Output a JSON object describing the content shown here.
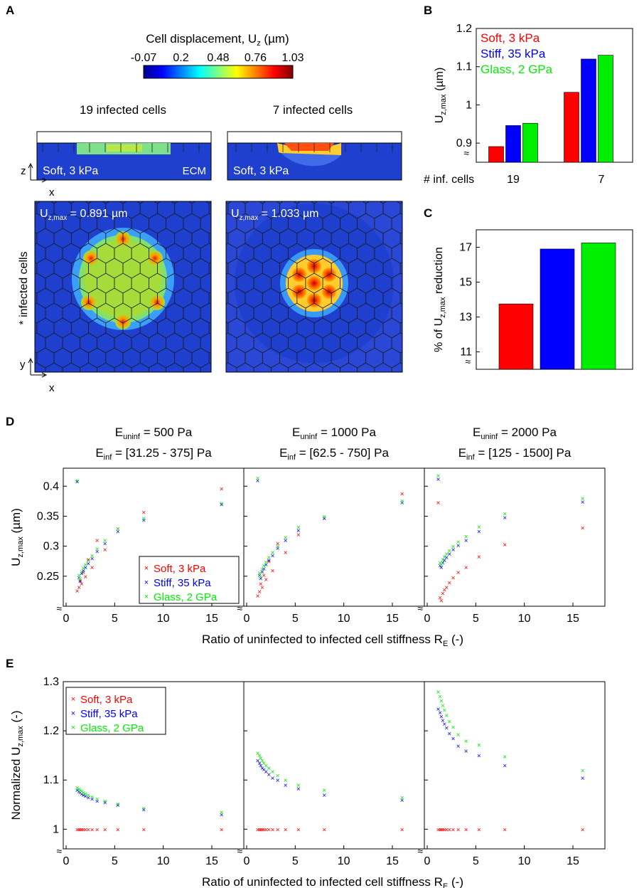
{
  "colors": {
    "soft": "#ff0000",
    "stiff": "#0000ff",
    "glass": "#00ee00",
    "substrate": "#1f3fcf",
    "halo": "#3359e6",
    "cell_line": "#222222"
  },
  "panel_labels": {
    "a": "A",
    "b": "B",
    "c": "C",
    "d": "D",
    "e": "E"
  },
  "panel_a": {
    "colorbar": {
      "title": "Cell displacement, U",
      "title_sub": "z",
      "title_unit": " (µm)",
      "ticks": [
        "-0.07",
        "0.2",
        "0.48",
        "0.76",
        "1.03"
      ]
    },
    "left": {
      "title": "19 infected cells",
      "side_label": "Soft, 3 kPa",
      "ecm_label": "ECM",
      "umax_prefix": "U",
      "umax_sub": "z,max",
      "umax_value": " = 0.891 µm"
    },
    "right": {
      "title": "7 infected cells",
      "side_label": "Soft, 3 kPa",
      "umax_prefix": "U",
      "umax_sub": "z,max",
      "umax_value": " = 1.033 µm"
    },
    "axis_z": "z",
    "axis_x": "x",
    "axis_y": "y",
    "infected_label": "* infected cells"
  },
  "panel_d_titles": [
    {
      "line1_a": "E",
      "line1_sub": "uninf",
      "line1_b": " = 500 Pa",
      "line2_a": "E",
      "line2_sub": "inf",
      "line2_b": " = [31.25 - 375] Pa"
    },
    {
      "line1_a": "E",
      "line1_sub": "uninf",
      "line1_b": " = 1000 Pa",
      "line2_a": "E",
      "line2_sub": "inf",
      "line2_b": " = [62.5 - 750] Pa"
    },
    {
      "line1_a": "E",
      "line1_sub": "uninf",
      "line1_b": " = 2000 Pa",
      "line2_a": "E",
      "line2_sub": "inf",
      "line2_b": " = [125 - 1500] Pa"
    }
  ],
  "legend_labels": [
    "Soft, 3 kPa",
    "Stiff, 35 kPa",
    "Glass, 2 GPa"
  ],
  "chart_data": [
    {
      "id": "B",
      "type": "bar",
      "ylabel": "U_z,max (µm)",
      "xlabel": "# inf. cells",
      "categories": [
        "19",
        "7"
      ],
      "ylim": [
        0.85,
        1.2
      ],
      "yticks": [
        "0.9",
        "1",
        "1.1",
        "1.2"
      ],
      "series": [
        {
          "name": "Soft, 3 kPa",
          "values": [
            0.891,
            1.033
          ]
        },
        {
          "name": "Stiff, 35 kPa",
          "values": [
            0.946,
            1.12
          ]
        },
        {
          "name": "Glass, 2 GPa",
          "values": [
            0.952,
            1.13
          ]
        }
      ]
    },
    {
      "id": "C",
      "type": "bar",
      "ylabel": "% of U_z,max reduction",
      "categories": [
        "Soft, 3 kPa",
        "Stiff, 35 kPa",
        "Glass, 2 GPa"
      ],
      "ylim": [
        10,
        18
      ],
      "yticks": [
        "11",
        "13",
        "15",
        "17"
      ],
      "values": [
        13.75,
        16.9,
        17.25
      ]
    },
    {
      "id": "D",
      "type": "scatter",
      "ylabel": "U_z,max (µm)",
      "xlabel": "Ratio of uninfected to infected cell stiffness R_E (-)",
      "x": [
        1.33,
        1.6,
        2.0,
        2.67,
        4.0,
        5.33,
        8.0,
        16.0,
        1.14,
        1.45,
        1.78,
        2.29,
        3.2
      ],
      "xlim": [
        0,
        18
      ],
      "ylim": [
        0.2,
        0.43
      ],
      "xticks": [
        "0",
        "5",
        "10",
        "15"
      ],
      "yticks": [
        "0.25",
        "0.3",
        "0.35",
        "0.4"
      ],
      "panels": [
        {
          "title": "E_uninf = 500 Pa, E_inf = [31.25 - 375] Pa",
          "series": [
            {
              "name": "Soft, 3 kPa",
              "values": [
                0.232,
                0.238,
                0.25,
                0.265,
                0.295,
                0.33,
                0.357,
                0.396,
                0.226,
                0.243,
                0.257,
                0.278,
                0.31
              ]
            },
            {
              "name": "Stiff, 35 kPa",
              "values": [
                0.248,
                0.255,
                0.265,
                0.28,
                0.305,
                0.325,
                0.344,
                0.37,
                0.408,
                0.242,
                0.26,
                0.272,
                0.292
              ]
            },
            {
              "name": "Glass, 2 GPa",
              "values": [
                0.252,
                0.258,
                0.27,
                0.285,
                0.31,
                0.33,
                0.347,
                0.372,
                0.41,
                0.246,
                0.264,
                0.277,
                0.296
              ]
            }
          ]
        },
        {
          "title": "E_uninf = 1000 Pa, E_inf = [62.5 - 750] Pa",
          "series": [
            {
              "name": "Soft, 3 kPa",
              "values": [
                0.225,
                0.232,
                0.245,
                0.26,
                0.29,
                0.32,
                0.347,
                0.388,
                0.218,
                0.238,
                0.252,
                0.275,
                0.305
              ]
            },
            {
              "name": "Stiff, 35 kPa",
              "values": [
                0.252,
                0.258,
                0.27,
                0.285,
                0.31,
                0.327,
                0.347,
                0.373,
                0.41,
                0.247,
                0.263,
                0.277,
                0.297
              ]
            },
            {
              "name": "Glass, 2 GPa",
              "values": [
                0.256,
                0.262,
                0.274,
                0.29,
                0.315,
                0.332,
                0.35,
                0.376,
                0.414,
                0.25,
                0.268,
                0.282,
                0.3
              ]
            }
          ]
        },
        {
          "title": "E_uninf = 2000 Pa, E_inf = [125 - 1500] Pa",
          "series": [
            {
              "name": "Soft, 3 kPa",
              "values": [
                0.215,
                0.222,
                0.232,
                0.248,
                0.265,
                0.283,
                0.303,
                0.331,
                0.373,
                0.21,
                0.228,
                0.24,
                0.257
              ]
            },
            {
              "name": "Stiff, 35 kPa",
              "values": [
                0.268,
                0.273,
                0.282,
                0.295,
                0.31,
                0.325,
                0.348,
                0.374,
                0.412,
                0.265,
                0.277,
                0.288,
                0.302
              ]
            },
            {
              "name": "Glass, 2 GPa",
              "values": [
                0.273,
                0.278,
                0.288,
                0.3,
                0.317,
                0.333,
                0.355,
                0.38,
                0.418,
                0.27,
                0.283,
                0.293,
                0.308
              ]
            }
          ]
        }
      ]
    },
    {
      "id": "E",
      "type": "scatter",
      "ylabel": "Normalized U_z,max (-)",
      "xlabel": "Ratio of uninfected to infected cell stiffness R_E (-)",
      "x": [
        1.14,
        1.33,
        1.45,
        1.6,
        1.78,
        2.0,
        2.29,
        2.67,
        3.2,
        4.0,
        5.33,
        8.0,
        16.0
      ],
      "xlim": [
        0,
        18
      ],
      "ylim": [
        0.96,
        1.3
      ],
      "xticks": [
        "0",
        "5",
        "10",
        "15"
      ],
      "yticks": [
        "1",
        "1.1",
        "1.2",
        "1.3"
      ],
      "panels": [
        {
          "series": [
            {
              "name": "Soft, 3 kPa",
              "values": [
                1,
                1,
                1,
                1,
                1,
                1,
                1,
                1,
                1,
                1,
                1,
                1,
                1
              ]
            },
            {
              "name": "Stiff, 35 kPa",
              "values": [
                1.08,
                1.077,
                1.075,
                1.072,
                1.07,
                1.068,
                1.065,
                1.062,
                1.058,
                1.055,
                1.05,
                1.04,
                1.03
              ]
            },
            {
              "name": "Glass, 2 GPa",
              "values": [
                1.085,
                1.082,
                1.08,
                1.078,
                1.075,
                1.072,
                1.07,
                1.066,
                1.062,
                1.058,
                1.052,
                1.043,
                1.035
              ]
            }
          ]
        },
        {
          "series": [
            {
              "name": "Soft, 3 kPa",
              "values": [
                1,
                1,
                1,
                1,
                1,
                1,
                1,
                1,
                1,
                1,
                1,
                1,
                1
              ]
            },
            {
              "name": "Stiff, 35 kPa",
              "values": [
                1.14,
                1.135,
                1.13,
                1.125,
                1.122,
                1.118,
                1.112,
                1.105,
                1.1,
                1.09,
                1.083,
                1.07,
                1.06
              ]
            },
            {
              "name": "Glass, 2 GPa",
              "values": [
                1.155,
                1.15,
                1.145,
                1.14,
                1.135,
                1.13,
                1.125,
                1.118,
                1.11,
                1.1,
                1.09,
                1.08,
                1.065
              ]
            }
          ]
        },
        {
          "series": [
            {
              "name": "Soft, 3 kPa",
              "values": [
                1,
                1,
                1,
                1,
                1,
                1,
                1,
                1,
                1,
                1,
                1,
                1,
                1
              ]
            },
            {
              "name": "Stiff, 35 kPa",
              "values": [
                1.245,
                1.238,
                1.23,
                1.222,
                1.215,
                1.207,
                1.195,
                1.185,
                1.17,
                1.16,
                1.15,
                1.13,
                1.105
              ]
            },
            {
              "name": "Glass, 2 GPa",
              "values": [
                1.28,
                1.27,
                1.262,
                1.252,
                1.243,
                1.232,
                1.22,
                1.208,
                1.193,
                1.18,
                1.172,
                1.148,
                1.12
              ]
            }
          ]
        }
      ]
    }
  ]
}
